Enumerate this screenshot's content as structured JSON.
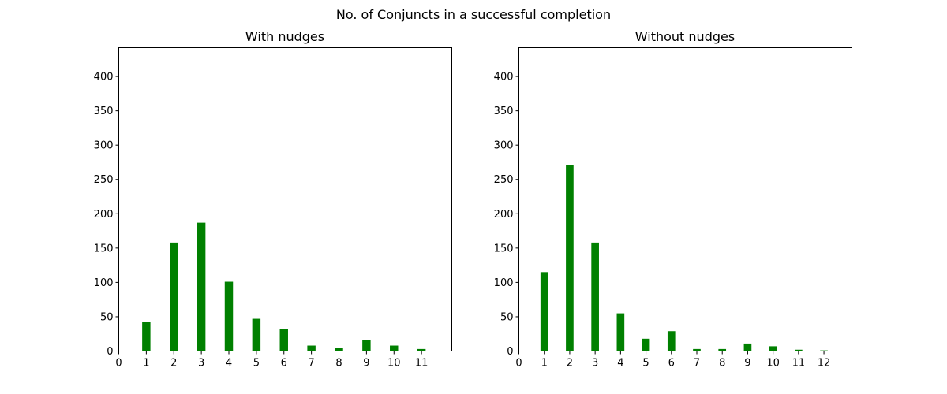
{
  "figure": {
    "suptitle": "No. of Conjuncts in a successful completion"
  },
  "chart_data": [
    {
      "type": "bar",
      "title": "With nudges",
      "xlabel": "",
      "ylabel": "",
      "color": "#008000",
      "x": [
        1,
        2,
        3,
        4,
        5,
        6,
        7,
        8,
        9,
        10,
        11
      ],
      "values": [
        42,
        158,
        187,
        101,
        47,
        32,
        8,
        5,
        16,
        8,
        3
      ],
      "xticks": [
        0,
        1,
        2,
        3,
        4,
        5,
        6,
        7,
        8,
        9,
        10,
        11
      ],
      "yticks": [
        0,
        50,
        100,
        150,
        200,
        250,
        300,
        350,
        400
      ],
      "xlim": [
        0,
        12.1
      ],
      "ylim": [
        0,
        442
      ],
      "grid": false
    },
    {
      "type": "bar",
      "title": "Without nudges",
      "xlabel": "",
      "ylabel": "",
      "color": "#008000",
      "x": [
        1,
        2,
        3,
        4,
        5,
        6,
        7,
        8,
        9,
        10,
        11,
        12
      ],
      "values": [
        115,
        271,
        158,
        55,
        18,
        29,
        3,
        3,
        11,
        7,
        2,
        1
      ],
      "xticks": [
        0,
        1,
        2,
        3,
        4,
        5,
        6,
        7,
        8,
        9,
        10,
        11,
        12
      ],
      "yticks": [
        0,
        50,
        100,
        150,
        200,
        250,
        300,
        350,
        400
      ],
      "xlim": [
        0,
        13.1
      ],
      "ylim": [
        0,
        442
      ],
      "grid": false
    }
  ]
}
